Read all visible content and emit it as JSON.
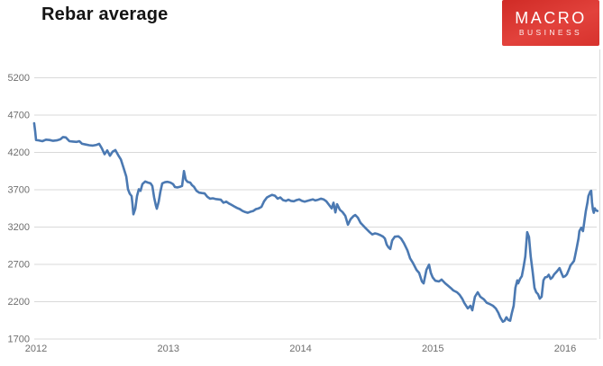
{
  "header": {
    "logo": {
      "line1": "MACRO",
      "line2": "BUSINESS",
      "bg_color": "#d7332d",
      "text_color": "#ffffff"
    }
  },
  "chart_data": {
    "type": "line",
    "title": "Rebar average",
    "xlabel": "",
    "ylabel": "",
    "legend": "none",
    "grid": "horizontal",
    "colors": {
      "line": "#4b79b2",
      "gridline": "#d9d9d9",
      "tick_label": "#6e6e6e",
      "title": "#141414"
    },
    "x_axis": {
      "ticks": [
        2012,
        2013,
        2014,
        2015,
        2016
      ],
      "range": [
        2011.99,
        2016.26
      ]
    },
    "y_axis": {
      "ticks": [
        5200,
        4700,
        4200,
        3700,
        3200,
        2700,
        2200,
        1700
      ],
      "range": [
        1700,
        5200
      ]
    },
    "series": [
      {
        "name": "Rebar average",
        "color": "#4b79b2",
        "points": [
          [
            2011.986,
            4585
          ],
          [
            2011.993,
            4480
          ],
          [
            2012.0,
            4360
          ],
          [
            2012.02,
            4355
          ],
          [
            2012.048,
            4345
          ],
          [
            2012.075,
            4365
          ],
          [
            2012.102,
            4360
          ],
          [
            2012.129,
            4350
          ],
          [
            2012.157,
            4355
          ],
          [
            2012.184,
            4370
          ],
          [
            2012.204,
            4400
          ],
          [
            2012.225,
            4395
          ],
          [
            2012.252,
            4345
          ],
          [
            2012.279,
            4340
          ],
          [
            2012.307,
            4335
          ],
          [
            2012.327,
            4345
          ],
          [
            2012.348,
            4310
          ],
          [
            2012.375,
            4300
          ],
          [
            2012.402,
            4290
          ],
          [
            2012.429,
            4285
          ],
          [
            2012.457,
            4295
          ],
          [
            2012.477,
            4310
          ],
          [
            2012.497,
            4250
          ],
          [
            2012.518,
            4170
          ],
          [
            2012.538,
            4220
          ],
          [
            2012.559,
            4150
          ],
          [
            2012.579,
            4205
          ],
          [
            2012.6,
            4225
          ],
          [
            2012.62,
            4160
          ],
          [
            2012.641,
            4100
          ],
          [
            2012.661,
            3990
          ],
          [
            2012.682,
            3870
          ],
          [
            2012.695,
            3700
          ],
          [
            2012.709,
            3640
          ],
          [
            2012.722,
            3610
          ],
          [
            2012.729,
            3500
          ],
          [
            2012.736,
            3365
          ],
          [
            2012.75,
            3440
          ],
          [
            2012.763,
            3610
          ],
          [
            2012.777,
            3700
          ],
          [
            2012.79,
            3680
          ],
          [
            2012.804,
            3770
          ],
          [
            2012.825,
            3805
          ],
          [
            2012.845,
            3790
          ],
          [
            2012.866,
            3780
          ],
          [
            2012.879,
            3745
          ],
          [
            2012.893,
            3590
          ],
          [
            2012.906,
            3480
          ],
          [
            2012.913,
            3440
          ],
          [
            2012.927,
            3530
          ],
          [
            2012.94,
            3665
          ],
          [
            2012.954,
            3780
          ],
          [
            2012.975,
            3795
          ],
          [
            2012.995,
            3800
          ],
          [
            2013.015,
            3790
          ],
          [
            2013.036,
            3770
          ],
          [
            2013.05,
            3730
          ],
          [
            2013.07,
            3725
          ],
          [
            2013.09,
            3735
          ],
          [
            2013.104,
            3745
          ],
          [
            2013.118,
            3945
          ],
          [
            2013.131,
            3830
          ],
          [
            2013.145,
            3800
          ],
          [
            2013.165,
            3790
          ],
          [
            2013.179,
            3755
          ],
          [
            2013.193,
            3735
          ],
          [
            2013.213,
            3680
          ],
          [
            2013.233,
            3655
          ],
          [
            2013.254,
            3650
          ],
          [
            2013.274,
            3645
          ],
          [
            2013.295,
            3600
          ],
          [
            2013.315,
            3575
          ],
          [
            2013.336,
            3580
          ],
          [
            2013.356,
            3570
          ],
          [
            2013.377,
            3565
          ],
          [
            2013.397,
            3560
          ],
          [
            2013.417,
            3520
          ],
          [
            2013.438,
            3535
          ],
          [
            2013.458,
            3510
          ],
          [
            2013.479,
            3490
          ],
          [
            2013.499,
            3470
          ],
          [
            2013.52,
            3450
          ],
          [
            2013.54,
            3435
          ],
          [
            2013.561,
            3410
          ],
          [
            2013.581,
            3395
          ],
          [
            2013.601,
            3385
          ],
          [
            2013.622,
            3400
          ],
          [
            2013.642,
            3410
          ],
          [
            2013.663,
            3435
          ],
          [
            2013.683,
            3445
          ],
          [
            2013.704,
            3465
          ],
          [
            2013.724,
            3540
          ],
          [
            2013.745,
            3590
          ],
          [
            2013.765,
            3610
          ],
          [
            2013.785,
            3625
          ],
          [
            2013.806,
            3615
          ],
          [
            2013.826,
            3575
          ],
          [
            2013.847,
            3590
          ],
          [
            2013.867,
            3555
          ],
          [
            2013.888,
            3545
          ],
          [
            2013.908,
            3560
          ],
          [
            2013.928,
            3545
          ],
          [
            2013.949,
            3540
          ],
          [
            2013.969,
            3555
          ],
          [
            2013.99,
            3565
          ],
          [
            2014.01,
            3545
          ],
          [
            2014.031,
            3535
          ],
          [
            2014.051,
            3545
          ],
          [
            2014.072,
            3555
          ],
          [
            2014.092,
            3565
          ],
          [
            2014.112,
            3550
          ],
          [
            2014.133,
            3560
          ],
          [
            2014.153,
            3575
          ],
          [
            2014.174,
            3565
          ],
          [
            2014.194,
            3540
          ],
          [
            2014.215,
            3490
          ],
          [
            2014.235,
            3445
          ],
          [
            2014.249,
            3520
          ],
          [
            2014.263,
            3390
          ],
          [
            2014.276,
            3500
          ],
          [
            2014.297,
            3425
          ],
          [
            2014.317,
            3395
          ],
          [
            2014.338,
            3345
          ],
          [
            2014.358,
            3225
          ],
          [
            2014.378,
            3300
          ],
          [
            2014.399,
            3340
          ],
          [
            2014.413,
            3355
          ],
          [
            2014.433,
            3320
          ],
          [
            2014.453,
            3250
          ],
          [
            2014.467,
            3225
          ],
          [
            2014.488,
            3185
          ],
          [
            2014.508,
            3150
          ],
          [
            2014.522,
            3125
          ],
          [
            2014.542,
            3095
          ],
          [
            2014.563,
            3110
          ],
          [
            2014.583,
            3100
          ],
          [
            2014.603,
            3085
          ],
          [
            2014.624,
            3065
          ],
          [
            2014.637,
            3040
          ],
          [
            2014.651,
            2960
          ],
          [
            2014.665,
            2920
          ],
          [
            2014.678,
            2900
          ],
          [
            2014.692,
            3015
          ],
          [
            2014.712,
            3065
          ],
          [
            2014.74,
            3070
          ],
          [
            2014.76,
            3040
          ],
          [
            2014.781,
            2980
          ],
          [
            2014.808,
            2880
          ],
          [
            2014.828,
            2775
          ],
          [
            2014.849,
            2715
          ],
          [
            2014.876,
            2620
          ],
          [
            2014.896,
            2580
          ],
          [
            2014.917,
            2465
          ],
          [
            2014.93,
            2440
          ],
          [
            2014.951,
            2620
          ],
          [
            2014.971,
            2690
          ],
          [
            2014.985,
            2580
          ],
          [
            2014.998,
            2520
          ],
          [
            2015.019,
            2475
          ],
          [
            2015.046,
            2465
          ],
          [
            2015.066,
            2490
          ],
          [
            2015.094,
            2440
          ],
          [
            2015.114,
            2410
          ],
          [
            2015.134,
            2380
          ],
          [
            2015.155,
            2345
          ],
          [
            2015.182,
            2320
          ],
          [
            2015.203,
            2285
          ],
          [
            2015.223,
            2230
          ],
          [
            2015.237,
            2180
          ],
          [
            2015.264,
            2105
          ],
          [
            2015.284,
            2140
          ],
          [
            2015.298,
            2080
          ],
          [
            2015.318,
            2260
          ],
          [
            2015.339,
            2320
          ],
          [
            2015.359,
            2260
          ],
          [
            2015.386,
            2225
          ],
          [
            2015.407,
            2180
          ],
          [
            2015.427,
            2165
          ],
          [
            2015.454,
            2140
          ],
          [
            2015.475,
            2105
          ],
          [
            2015.495,
            2045
          ],
          [
            2015.509,
            1985
          ],
          [
            2015.529,
            1925
          ],
          [
            2015.543,
            1940
          ],
          [
            2015.556,
            1985
          ],
          [
            2015.57,
            1950
          ],
          [
            2015.584,
            1940
          ],
          [
            2015.597,
            2045
          ],
          [
            2015.611,
            2140
          ],
          [
            2015.624,
            2380
          ],
          [
            2015.638,
            2480
          ],
          [
            2015.645,
            2440
          ],
          [
            2015.659,
            2500
          ],
          [
            2015.672,
            2535
          ],
          [
            2015.686,
            2660
          ],
          [
            2015.699,
            2800
          ],
          [
            2015.713,
            3125
          ],
          [
            2015.727,
            3060
          ],
          [
            2015.74,
            2800
          ],
          [
            2015.754,
            2600
          ],
          [
            2015.768,
            2380
          ],
          [
            2015.781,
            2320
          ],
          [
            2015.795,
            2295
          ],
          [
            2015.808,
            2235
          ],
          [
            2015.822,
            2260
          ],
          [
            2015.836,
            2480
          ],
          [
            2015.849,
            2520
          ],
          [
            2015.863,
            2525
          ],
          [
            2015.876,
            2555
          ],
          [
            2015.89,
            2500
          ],
          [
            2015.904,
            2520
          ],
          [
            2015.917,
            2560
          ],
          [
            2015.938,
            2600
          ],
          [
            2015.958,
            2645
          ],
          [
            2015.972,
            2580
          ],
          [
            2015.985,
            2525
          ],
          [
            2015.999,
            2535
          ],
          [
            2016.013,
            2560
          ],
          [
            2016.033,
            2645
          ],
          [
            2016.04,
            2680
          ],
          [
            2016.054,
            2710
          ],
          [
            2016.067,
            2740
          ],
          [
            2016.074,
            2800
          ],
          [
            2016.088,
            2920
          ],
          [
            2016.101,
            3040
          ],
          [
            2016.108,
            3140
          ],
          [
            2016.122,
            3185
          ],
          [
            2016.135,
            3140
          ],
          [
            2016.142,
            3225
          ],
          [
            2016.156,
            3405
          ],
          [
            2016.169,
            3525
          ],
          [
            2016.176,
            3610
          ],
          [
            2016.19,
            3670
          ],
          [
            2016.197,
            3680
          ],
          [
            2016.203,
            3525
          ],
          [
            2016.21,
            3430
          ],
          [
            2016.217,
            3385
          ],
          [
            2016.224,
            3445
          ],
          [
            2016.231,
            3420
          ],
          [
            2016.244,
            3410
          ]
        ]
      }
    ]
  }
}
